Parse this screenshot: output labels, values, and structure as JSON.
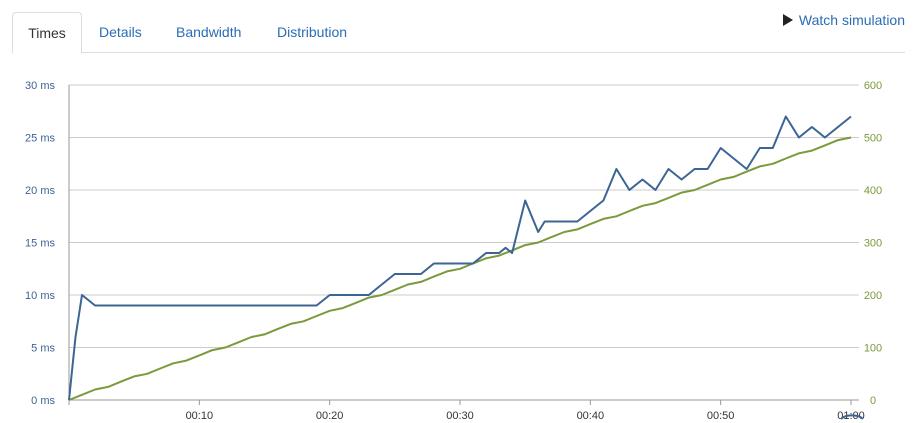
{
  "tabs": [
    {
      "label": "Times",
      "active": true
    },
    {
      "label": "Details",
      "active": false
    },
    {
      "label": "Bandwidth",
      "active": false
    },
    {
      "label": "Distribution",
      "active": false
    }
  ],
  "watch_label": "Watch simulation",
  "colors": {
    "series_times": "#3d6594",
    "series_users": "#7a9a3c",
    "grid": "#cccccc",
    "left_axis_text": "#3d6594",
    "right_axis_text": "#7a9a3c"
  },
  "chart_data": {
    "type": "line",
    "left_ticks": [
      "0 ms",
      "5 ms",
      "10 ms",
      "15 ms",
      "20 ms",
      "25 ms",
      "30 ms"
    ],
    "right_ticks": [
      "0",
      "100",
      "200",
      "300",
      "400",
      "500",
      "600"
    ],
    "x_ticks": [
      "00:10",
      "00:20",
      "00:30",
      "00:40",
      "00:50",
      "01:00"
    ],
    "left_range": [
      0,
      30
    ],
    "right_range": [
      0,
      600
    ],
    "x_range_seconds": [
      0,
      60
    ],
    "series": [
      {
        "axis": "left",
        "x": [
          0,
          0.5,
          1,
          2,
          5,
          10,
          15,
          19,
          20,
          23,
          24,
          25,
          26,
          27,
          28,
          29,
          30,
          31,
          32,
          33,
          33.5,
          34,
          35,
          36,
          36.5,
          37,
          38,
          39,
          40,
          41,
          42,
          43,
          44,
          45,
          46,
          47,
          48,
          49,
          50,
          51,
          52,
          53,
          54,
          55,
          56,
          57,
          58,
          59,
          60
        ],
        "y": [
          0,
          6,
          10,
          9,
          9,
          9,
          9,
          9,
          10,
          10,
          11,
          12,
          12,
          12,
          13,
          13,
          13,
          13,
          14,
          14,
          14.5,
          14,
          19,
          16,
          17,
          17,
          17,
          17,
          18,
          19,
          22,
          20,
          21,
          20,
          22,
          21,
          22,
          22,
          24,
          23,
          22,
          24,
          24,
          27,
          25,
          26,
          25,
          26,
          27
        ]
      },
      {
        "axis": "right",
        "x": [
          0,
          1,
          2,
          3,
          4,
          5,
          6,
          7,
          8,
          9,
          10,
          11,
          12,
          13,
          14,
          15,
          16,
          17,
          18,
          19,
          20,
          21,
          22,
          23,
          24,
          25,
          26,
          27,
          28,
          29,
          30,
          31,
          32,
          33,
          34,
          35,
          36,
          37,
          38,
          39,
          40,
          41,
          42,
          43,
          44,
          45,
          46,
          47,
          48,
          49,
          50,
          51,
          52,
          53,
          54,
          55,
          56,
          57,
          58,
          59,
          60
        ],
        "y": [
          0,
          10,
          20,
          25,
          35,
          45,
          50,
          60,
          70,
          75,
          85,
          95,
          100,
          110,
          120,
          125,
          135,
          145,
          150,
          160,
          170,
          175,
          185,
          195,
          200,
          210,
          220,
          225,
          235,
          245,
          250,
          260,
          270,
          275,
          285,
          295,
          300,
          310,
          320,
          325,
          335,
          345,
          350,
          360,
          370,
          375,
          385,
          395,
          400,
          410,
          420,
          425,
          435,
          445,
          450,
          460,
          470,
          475,
          485,
          495,
          500
        ]
      }
    ]
  }
}
